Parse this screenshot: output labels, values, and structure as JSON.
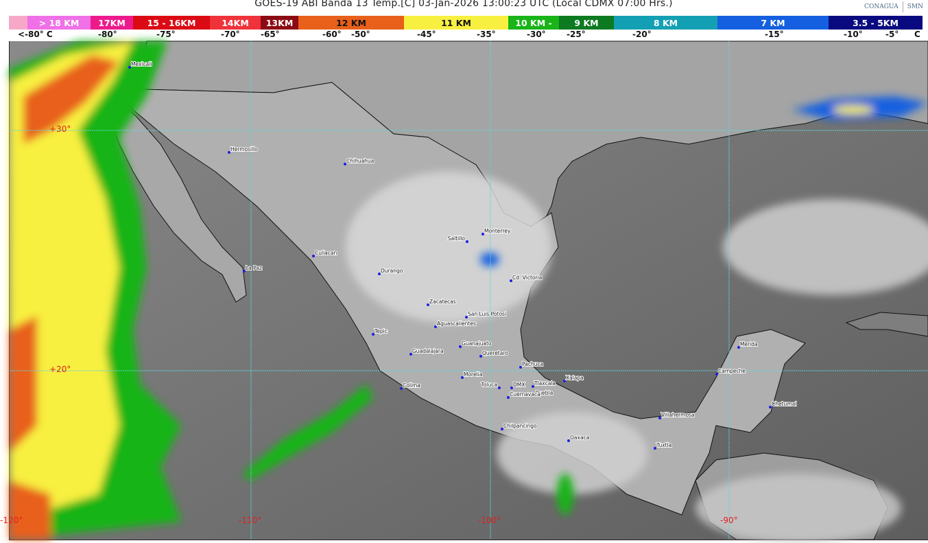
{
  "header": {
    "title": "GOES-19 ABI Banda 13 Temp.[C] 03-Jan-2026 13:00:23 UTC (Local CDMX  07:00 Hrs.)",
    "logos": [
      "CONAGUA",
      "SMN"
    ]
  },
  "legend": {
    "segments": [
      {
        "label": "",
        "color": "#f7a8c8"
      },
      {
        "label": "> 18 KM",
        "color": "#f070e8"
      },
      {
        "label": "17KM",
        "color": "#ee1a8c"
      },
      {
        "label": "15 - 16KM",
        "color": "#dc0a14"
      },
      {
        "label": "14KM",
        "color": "#f0323a"
      },
      {
        "label": "13KM",
        "color": "#8c0a14"
      },
      {
        "label": "12 KM",
        "color": "#e8601a"
      },
      {
        "label": "11 KM",
        "color": "#f8f040"
      },
      {
        "label": "10 KM -",
        "color": "#18b418"
      },
      {
        "label": "9 KM",
        "color": "#0c7a20"
      },
      {
        "label": "8 KM",
        "color": "#14a0b4"
      },
      {
        "label": "7 KM",
        "color": "#1460e0"
      },
      {
        "label": "3.5 - 5KM",
        "color": "#0a0a80"
      }
    ],
    "temps": [
      "<-80° C",
      "-80°",
      "-75°",
      "-70°",
      "-65°",
      "-60°",
      "-50°",
      "-45°",
      "-35°",
      "-30°",
      "-25°",
      "-20°",
      "-15°",
      "-10°",
      "-5°",
      "C"
    ]
  },
  "map": {
    "grid_labels": {
      "lat": [
        "+30°",
        "+20°"
      ],
      "lon": [
        "-120°",
        "-110°",
        "-100°",
        "-90°"
      ]
    },
    "grid_color": "#5fd4d8",
    "grid_label_color": "#e02020",
    "cities": [
      "Mexicali",
      "Hermosillo",
      "Chihuahua",
      "La Paz",
      "Culiacan",
      "Durango",
      "Saltillo",
      "Monterrey",
      "Cd. Victoria",
      "Zacatecas",
      "San Luis Potosi",
      "Aguascalientes",
      "Tepic",
      "Guanajuato",
      "Guadalajara",
      "Queretaro",
      "Pachuca",
      "Morelia",
      "Colima",
      "Toluca",
      "DMX",
      "Tlaxcala",
      "Puebla",
      "Cuernavaca",
      "Xalapa",
      "Chilpancingo",
      "Oaxaca",
      "Villahermosa",
      "Tuxtla",
      "Merida",
      "Campeche",
      "Chetumal"
    ]
  }
}
